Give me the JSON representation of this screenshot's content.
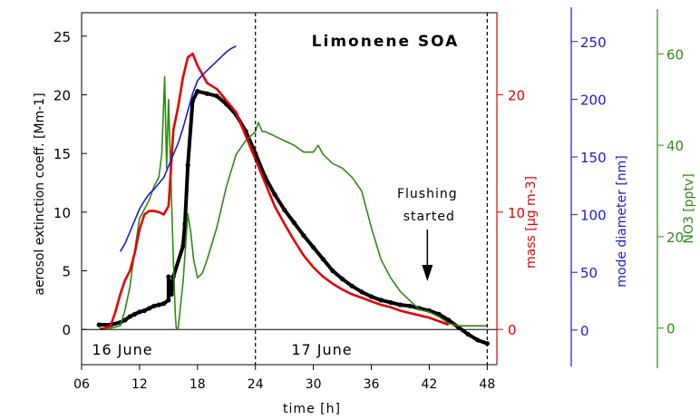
{
  "chart_data": {
    "type": "line",
    "title": "Limonene SOA",
    "xlabel": "time   [h]",
    "xlim": [
      6,
      49
    ],
    "x_ticks": [
      6,
      12,
      18,
      24,
      30,
      36,
      42,
      48
    ],
    "x_tick_labels": [
      "06",
      "12",
      "18",
      "24",
      "30",
      "36",
      "42",
      "48"
    ],
    "date_labels": [
      "16 June",
      "17 June"
    ],
    "vertical_markers": [
      24,
      48
    ],
    "annotation": {
      "lines": [
        "Flushing",
        "started"
      ],
      "x": 41.8
    },
    "axes": {
      "extinction": {
        "label": "aerosol extinction coeff.  [Mm-1]",
        "range": [
          -3,
          27
        ],
        "ticks": [
          0,
          5,
          10,
          15,
          20,
          25
        ],
        "color": "#000000"
      },
      "mass": {
        "label": "mass  [µg m-3]",
        "range": [
          -3,
          27
        ],
        "ticks": [
          0,
          10,
          20
        ],
        "color": "#e60000"
      },
      "diameter": {
        "label": "mode diameter   [nm]",
        "range": [
          -30,
          275
        ],
        "ticks": [
          0,
          50,
          100,
          150,
          200,
          250
        ],
        "color": "#1a1adb"
      },
      "no3": {
        "label": "NO3   [pptv]",
        "range": [
          -8,
          69
        ],
        "ticks": [
          0,
          20,
          40,
          60
        ],
        "color": "#2e8b12"
      }
    },
    "series": [
      {
        "name": "aerosol extinction",
        "axis": "extinction",
        "color": "#000000",
        "style": "dots",
        "x": [
          7.8,
          9,
          10,
          10.5,
          11,
          11.5,
          12,
          12.5,
          13,
          13.5,
          14,
          14.5,
          15,
          15,
          15.3,
          15.5,
          16.5,
          16.7,
          17,
          17.5,
          18,
          19,
          20,
          21,
          22,
          23,
          24,
          25,
          26,
          27,
          28,
          29,
          30,
          31,
          32,
          33,
          34,
          35,
          36,
          37,
          38,
          39,
          40,
          41,
          42,
          43,
          44,
          45,
          46,
          47,
          48
        ],
        "values": [
          0.4,
          0.4,
          0.6,
          0.8,
          1.1,
          1.3,
          1.5,
          1.6,
          1.8,
          2,
          2.1,
          2.2,
          2.5,
          4.5,
          3,
          4.5,
          7.1,
          9,
          14,
          19.5,
          20.3,
          20.1,
          19.9,
          19.2,
          18.3,
          16.9,
          15,
          13,
          11.5,
          10.2,
          9.1,
          8,
          7,
          6,
          5,
          4.3,
          3.7,
          3.2,
          2.8,
          2.5,
          2.3,
          2.1,
          2,
          1.8,
          1.6,
          1.3,
          0.8,
          0.2,
          -0.4,
          -0.9,
          -1.2
        ]
      },
      {
        "name": "mass",
        "axis": "mass",
        "color": "#e60000",
        "style": "line",
        "x": [
          8,
          9,
          9.5,
          10,
          10.5,
          11,
          11.5,
          12,
          12.5,
          13,
          13.5,
          14,
          14.5,
          15,
          15.2,
          15.5,
          16,
          16.5,
          17,
          17.5,
          18,
          19,
          20,
          21,
          22,
          23,
          24,
          25,
          26,
          27,
          28,
          29,
          30,
          31,
          32,
          33,
          34,
          35,
          36,
          37,
          38,
          39,
          40,
          41,
          42,
          43,
          44
        ],
        "values": [
          0,
          0.3,
          1.5,
          3,
          4.2,
          5,
          6.5,
          8.5,
          9.8,
          10.1,
          10.1,
          10,
          9.8,
          10.5,
          13,
          17,
          19,
          21.5,
          23.2,
          23.5,
          22.5,
          21,
          20.5,
          19.5,
          18.5,
          16.5,
          14.5,
          12.5,
          10.5,
          9,
          7.6,
          6.3,
          5.3,
          4.5,
          3.9,
          3.4,
          3,
          2.7,
          2.4,
          2.1,
          1.9,
          1.6,
          1.4,
          1.2,
          1,
          0.7,
          0.4
        ]
      },
      {
        "name": "mode diameter",
        "axis": "diameter",
        "color": "#1a1adb",
        "style": "line",
        "x": [
          10,
          10.5,
          11,
          11.5,
          12,
          12.5,
          13,
          13.5,
          14,
          14.5,
          15,
          15.5,
          16,
          16.5,
          17,
          17.5,
          18,
          18.5,
          19,
          19.5,
          20,
          20.5,
          21,
          21.5,
          22
        ],
        "values": [
          68,
          75,
          85,
          95,
          105,
          112,
          118,
          122,
          127,
          132,
          142,
          152,
          162,
          175,
          190,
          205,
          216,
          221,
          225,
          229,
          233,
          237,
          241,
          244,
          246
        ]
      },
      {
        "name": "NO3",
        "axis": "no3",
        "color": "#2e8b12",
        "style": "line",
        "x": [
          7.8,
          9,
          10,
          10.5,
          11,
          11.5,
          12,
          12.5,
          13,
          13.5,
          14,
          14.3,
          14.6,
          14.8,
          15,
          15.2,
          15.5,
          15.7,
          15.8,
          16,
          16.5,
          17,
          17.3,
          17.6,
          18,
          18.5,
          19,
          20,
          21,
          22,
          23,
          24,
          24.3,
          24.7,
          25,
          26,
          27,
          28,
          29,
          30,
          30.5,
          31,
          32,
          33,
          34,
          35,
          36,
          37,
          38,
          39,
          40,
          41,
          42,
          43,
          44,
          45,
          46,
          47,
          48
        ],
        "values": [
          0,
          0,
          0.5,
          4,
          9,
          17,
          24,
          26,
          28,
          31,
          33,
          38,
          55,
          35,
          50,
          36,
          15,
          3,
          0,
          0,
          10,
          25,
          21,
          15,
          11,
          12,
          15,
          22,
          31,
          38,
          41,
          43,
          45,
          43,
          43,
          42,
          41,
          40,
          38.5,
          38.5,
          40,
          38,
          36,
          35,
          33,
          30,
          22,
          15,
          11,
          8,
          6,
          4,
          3.5,
          2.5,
          1,
          0.5,
          0.5,
          0.5,
          0.5
        ]
      }
    ]
  }
}
